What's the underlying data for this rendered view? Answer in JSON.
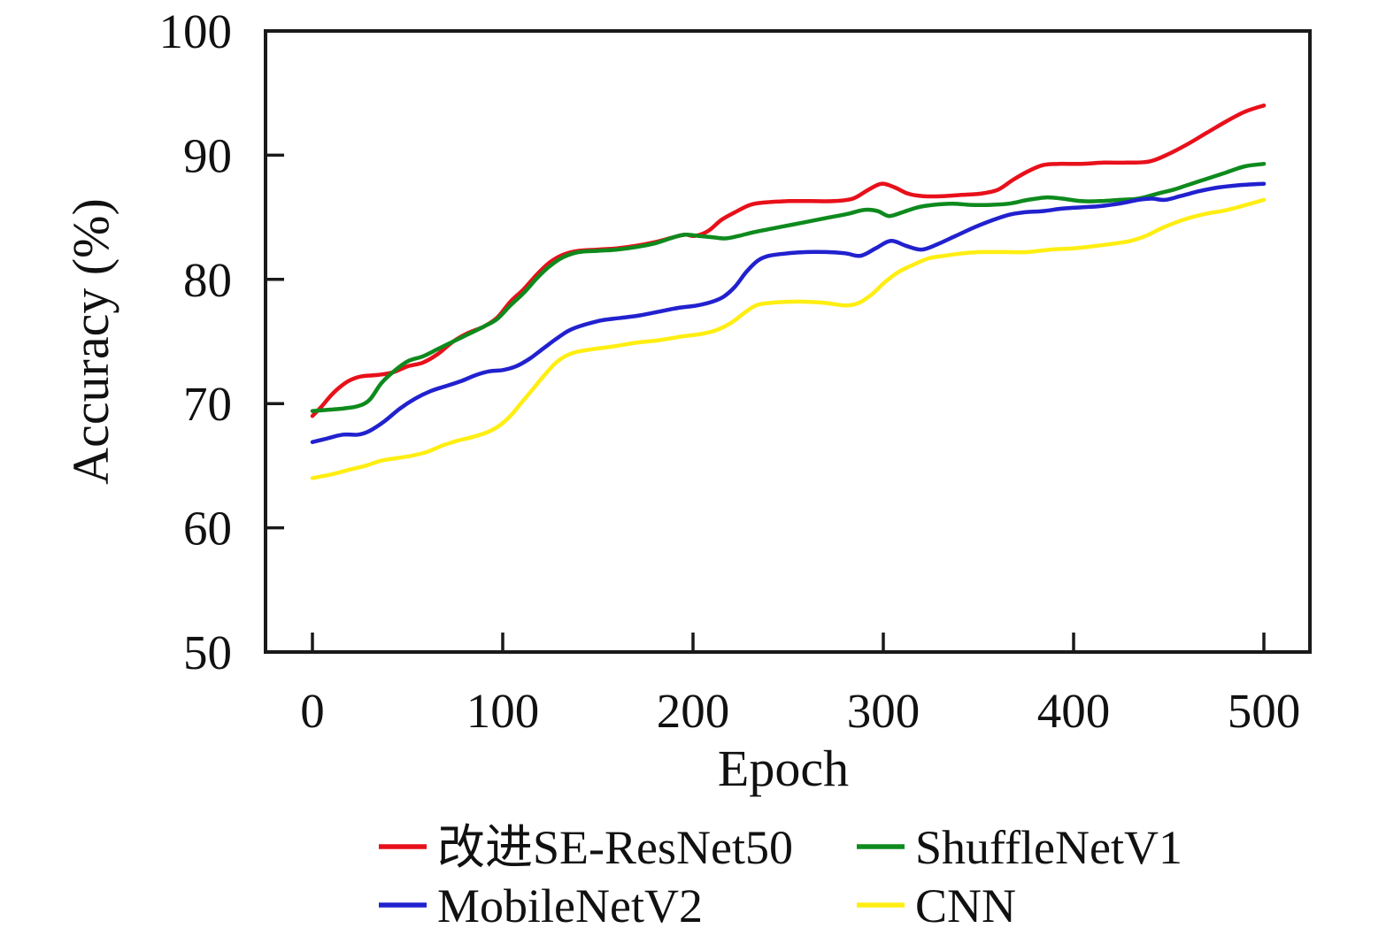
{
  "chart_data": {
    "type": "line",
    "title": "",
    "xlabel": "Epoch",
    "ylabel": "Accuracy (%)",
    "xlim": [
      0,
      500
    ],
    "ylim": [
      50,
      100
    ],
    "x_ticks": [
      0,
      100,
      200,
      300,
      400,
      500
    ],
    "y_ticks": [
      50,
      60,
      70,
      80,
      90,
      100
    ],
    "grid": false,
    "legend_position": "bottom",
    "legend_columns": 2,
    "axis_color": "#1a1a1a",
    "series": [
      {
        "name": "改进SE-ResNet50",
        "color": "#e8101a",
        "points": [
          [
            0,
            69.0
          ],
          [
            5,
            69.8
          ],
          [
            10,
            70.7
          ],
          [
            15,
            71.4
          ],
          [
            20,
            71.9
          ],
          [
            26,
            72.2
          ],
          [
            34,
            72.3
          ],
          [
            42,
            72.5
          ],
          [
            50,
            73.0
          ],
          [
            58,
            73.3
          ],
          [
            66,
            74.0
          ],
          [
            74,
            75.0
          ],
          [
            82,
            75.7
          ],
          [
            90,
            76.2
          ],
          [
            97,
            76.9
          ],
          [
            104,
            78.2
          ],
          [
            111,
            79.2
          ],
          [
            118,
            80.4
          ],
          [
            125,
            81.4
          ],
          [
            132,
            82.0
          ],
          [
            140,
            82.3
          ],
          [
            150,
            82.4
          ],
          [
            160,
            82.5
          ],
          [
            170,
            82.7
          ],
          [
            180,
            83.0
          ],
          [
            190,
            83.4
          ],
          [
            196,
            83.6
          ],
          [
            201,
            83.5
          ],
          [
            208,
            83.9
          ],
          [
            215,
            84.8
          ],
          [
            222,
            85.4
          ],
          [
            230,
            86.0
          ],
          [
            238,
            86.2
          ],
          [
            250,
            86.3
          ],
          [
            262,
            86.3
          ],
          [
            274,
            86.3
          ],
          [
            284,
            86.5
          ],
          [
            292,
            87.2
          ],
          [
            299,
            87.7
          ],
          [
            306,
            87.4
          ],
          [
            313,
            86.9
          ],
          [
            321,
            86.7
          ],
          [
            331,
            86.7
          ],
          [
            341,
            86.8
          ],
          [
            351,
            86.9
          ],
          [
            360,
            87.2
          ],
          [
            368,
            88.0
          ],
          [
            376,
            88.7
          ],
          [
            384,
            89.2
          ],
          [
            392,
            89.3
          ],
          [
            404,
            89.3
          ],
          [
            416,
            89.4
          ],
          [
            428,
            89.4
          ],
          [
            440,
            89.5
          ],
          [
            450,
            90.1
          ],
          [
            460,
            90.9
          ],
          [
            470,
            91.8
          ],
          [
            480,
            92.7
          ],
          [
            490,
            93.5
          ],
          [
            500,
            94.0
          ]
        ]
      },
      {
        "name": "ShuffleNetV1",
        "color": "#0e8a1d",
        "points": [
          [
            0,
            69.4
          ],
          [
            8,
            69.5
          ],
          [
            16,
            69.6
          ],
          [
            24,
            69.8
          ],
          [
            30,
            70.3
          ],
          [
            36,
            71.6
          ],
          [
            42,
            72.5
          ],
          [
            50,
            73.4
          ],
          [
            58,
            73.8
          ],
          [
            66,
            74.4
          ],
          [
            74,
            75.0
          ],
          [
            82,
            75.6
          ],
          [
            90,
            76.2
          ],
          [
            97,
            76.8
          ],
          [
            104,
            77.9
          ],
          [
            111,
            78.9
          ],
          [
            118,
            80.1
          ],
          [
            125,
            81.1
          ],
          [
            132,
            81.8
          ],
          [
            140,
            82.2
          ],
          [
            150,
            82.3
          ],
          [
            160,
            82.4
          ],
          [
            170,
            82.6
          ],
          [
            180,
            82.9
          ],
          [
            190,
            83.4
          ],
          [
            196,
            83.6
          ],
          [
            203,
            83.5
          ],
          [
            210,
            83.4
          ],
          [
            217,
            83.3
          ],
          [
            224,
            83.5
          ],
          [
            232,
            83.8
          ],
          [
            242,
            84.1
          ],
          [
            252,
            84.4
          ],
          [
            262,
            84.7
          ],
          [
            272,
            85.0
          ],
          [
            282,
            85.3
          ],
          [
            290,
            85.6
          ],
          [
            297,
            85.5
          ],
          [
            303,
            85.1
          ],
          [
            310,
            85.4
          ],
          [
            318,
            85.8
          ],
          [
            326,
            86.0
          ],
          [
            336,
            86.1
          ],
          [
            346,
            86.0
          ],
          [
            356,
            86.0
          ],
          [
            366,
            86.1
          ],
          [
            376,
            86.4
          ],
          [
            386,
            86.6
          ],
          [
            394,
            86.5
          ],
          [
            404,
            86.3
          ],
          [
            414,
            86.3
          ],
          [
            424,
            86.4
          ],
          [
            434,
            86.5
          ],
          [
            444,
            86.9
          ],
          [
            452,
            87.2
          ],
          [
            460,
            87.6
          ],
          [
            470,
            88.1
          ],
          [
            480,
            88.6
          ],
          [
            490,
            89.1
          ],
          [
            500,
            89.3
          ]
        ]
      },
      {
        "name": "MobileNetV2",
        "color": "#2121cf",
        "points": [
          [
            0,
            66.9
          ],
          [
            8,
            67.2
          ],
          [
            16,
            67.5
          ],
          [
            24,
            67.5
          ],
          [
            30,
            67.8
          ],
          [
            38,
            68.6
          ],
          [
            46,
            69.6
          ],
          [
            54,
            70.4
          ],
          [
            62,
            71.0
          ],
          [
            70,
            71.4
          ],
          [
            78,
            71.8
          ],
          [
            86,
            72.3
          ],
          [
            93,
            72.6
          ],
          [
            100,
            72.7
          ],
          [
            107,
            73.0
          ],
          [
            114,
            73.6
          ],
          [
            121,
            74.4
          ],
          [
            128,
            75.2
          ],
          [
            135,
            75.9
          ],
          [
            142,
            76.3
          ],
          [
            152,
            76.7
          ],
          [
            162,
            76.9
          ],
          [
            172,
            77.1
          ],
          [
            182,
            77.4
          ],
          [
            192,
            77.7
          ],
          [
            202,
            77.9
          ],
          [
            210,
            78.2
          ],
          [
            216,
            78.6
          ],
          [
            222,
            79.4
          ],
          [
            228,
            80.6
          ],
          [
            234,
            81.5
          ],
          [
            240,
            81.9
          ],
          [
            250,
            82.1
          ],
          [
            260,
            82.2
          ],
          [
            270,
            82.2
          ],
          [
            280,
            82.1
          ],
          [
            288,
            81.9
          ],
          [
            296,
            82.5
          ],
          [
            304,
            83.1
          ],
          [
            312,
            82.7
          ],
          [
            320,
            82.4
          ],
          [
            328,
            82.8
          ],
          [
            338,
            83.5
          ],
          [
            348,
            84.2
          ],
          [
            358,
            84.8
          ],
          [
            366,
            85.2
          ],
          [
            374,
            85.4
          ],
          [
            384,
            85.5
          ],
          [
            394,
            85.7
          ],
          [
            404,
            85.8
          ],
          [
            414,
            85.9
          ],
          [
            424,
            86.1
          ],
          [
            434,
            86.4
          ],
          [
            441,
            86.5
          ],
          [
            448,
            86.4
          ],
          [
            456,
            86.7
          ],
          [
            466,
            87.1
          ],
          [
            476,
            87.4
          ],
          [
            488,
            87.6
          ],
          [
            500,
            87.7
          ]
        ]
      },
      {
        "name": "CNN",
        "color": "#ffee12",
        "points": [
          [
            0,
            64.0
          ],
          [
            10,
            64.3
          ],
          [
            20,
            64.7
          ],
          [
            28,
            65.0
          ],
          [
            36,
            65.4
          ],
          [
            44,
            65.6
          ],
          [
            52,
            65.8
          ],
          [
            60,
            66.1
          ],
          [
            68,
            66.6
          ],
          [
            76,
            67.0
          ],
          [
            84,
            67.3
          ],
          [
            92,
            67.7
          ],
          [
            98,
            68.2
          ],
          [
            104,
            69.0
          ],
          [
            110,
            70.1
          ],
          [
            116,
            71.2
          ],
          [
            122,
            72.3
          ],
          [
            128,
            73.3
          ],
          [
            134,
            73.9
          ],
          [
            140,
            74.2
          ],
          [
            148,
            74.4
          ],
          [
            158,
            74.6
          ],
          [
            170,
            74.9
          ],
          [
            182,
            75.1
          ],
          [
            194,
            75.4
          ],
          [
            204,
            75.6
          ],
          [
            212,
            75.9
          ],
          [
            220,
            76.5
          ],
          [
            227,
            77.3
          ],
          [
            233,
            77.9
          ],
          [
            240,
            78.1
          ],
          [
            250,
            78.2
          ],
          [
            260,
            78.2
          ],
          [
            270,
            78.1
          ],
          [
            280,
            77.9
          ],
          [
            287,
            78.1
          ],
          [
            294,
            78.8
          ],
          [
            301,
            79.8
          ],
          [
            308,
            80.6
          ],
          [
            316,
            81.2
          ],
          [
            324,
            81.7
          ],
          [
            332,
            81.9
          ],
          [
            342,
            82.1
          ],
          [
            352,
            82.2
          ],
          [
            364,
            82.2
          ],
          [
            376,
            82.2
          ],
          [
            388,
            82.4
          ],
          [
            400,
            82.5
          ],
          [
            412,
            82.7
          ],
          [
            422,
            82.9
          ],
          [
            430,
            83.1
          ],
          [
            438,
            83.5
          ],
          [
            446,
            84.1
          ],
          [
            454,
            84.6
          ],
          [
            462,
            85.0
          ],
          [
            470,
            85.3
          ],
          [
            478,
            85.5
          ],
          [
            486,
            85.8
          ],
          [
            493,
            86.1
          ],
          [
            500,
            86.4
          ]
        ]
      }
    ]
  }
}
